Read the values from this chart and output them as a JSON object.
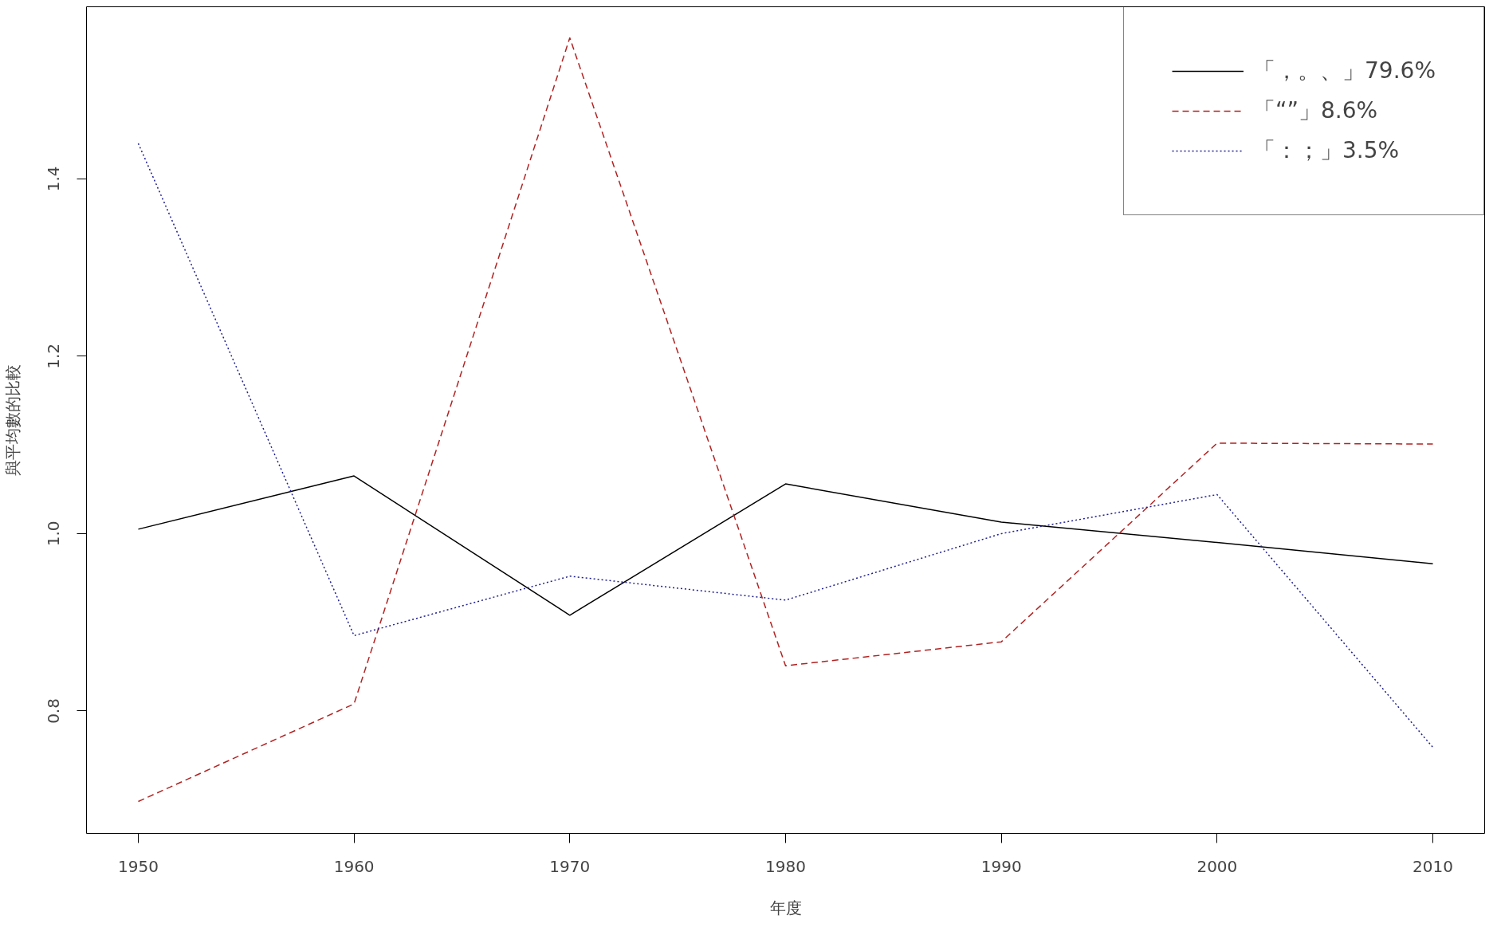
{
  "chart_data": {
    "type": "line",
    "xlabel": "年度",
    "ylabel": "與平均數的比較",
    "x": [
      1950,
      1960,
      1970,
      1980,
      1990,
      2000,
      2010
    ],
    "xlim": [
      1947.6,
      2012.4
    ],
    "xticks": [
      1950,
      1960,
      1970,
      1980,
      1990,
      2000,
      2010
    ],
    "ylim": [
      0.662,
      1.594
    ],
    "yticks": [
      0.8,
      {
        "value": 1.0,
        "label": "1.0"
      },
      1.2,
      1.4
    ],
    "grid": false,
    "legend": "top right",
    "series": [
      {
        "name": "「，。、」79.6%",
        "color": "#000000",
        "line_style": "solid",
        "values": [
          1.005,
          1.065,
          0.908,
          1.056,
          1.013,
          0.99,
          0.966
        ]
      },
      {
        "name": "「“”」8.6%",
        "color": "#b22222",
        "line_style": "dashed",
        "values": [
          0.698,
          0.808,
          1.559,
          0.851,
          0.878,
          1.102,
          1.101
        ]
      },
      {
        "name": "「：；」3.5%",
        "color": "#1f1f8f",
        "line_style": "dotted",
        "values": [
          1.44,
          0.885,
          0.952,
          0.925,
          1.0,
          1.044,
          0.759
        ]
      }
    ]
  }
}
